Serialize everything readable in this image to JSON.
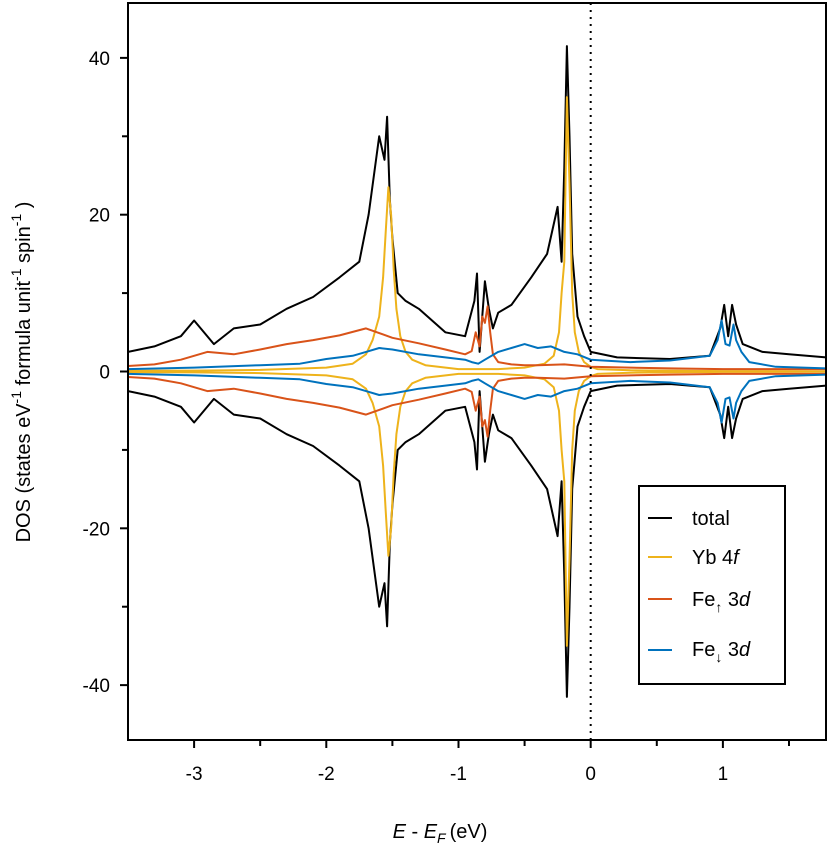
{
  "chart_data": {
    "type": "line",
    "title": "",
    "xlabel": {
      "italic_main": "E",
      "sep": " - ",
      "italic_sub_main": "E",
      "sub": "F",
      "unit": "(eV)"
    },
    "ylabel": {
      "part1": "DOS (states eV",
      "sup1": "-1",
      "part2": " formula unit",
      "sup2": "-1",
      "part3": " spin",
      "sup3": "-1",
      "part4": " )"
    },
    "xlim": [
      -3.5,
      1.78
    ],
    "ylim": [
      -47,
      47
    ],
    "xticks": [
      -3,
      -2,
      -1,
      0,
      1
    ],
    "xtick_labels": [
      "-3",
      "-2",
      "-1",
      "0",
      "1"
    ],
    "yticks": [
      40,
      20,
      0,
      -20,
      -40
    ],
    "ytick_labels": [
      "40",
      "20",
      "0",
      "-20",
      "-40"
    ],
    "fermi_level": 0,
    "legend_position": "lower-right",
    "series": [
      {
        "name": "total",
        "label_main": "total",
        "label_italic": "",
        "label_sub": "",
        "color": "#000000",
        "x": [
          -3.5,
          -3.3,
          -3.1,
          -3.0,
          -2.95,
          -2.85,
          -2.7,
          -2.5,
          -2.3,
          -2.1,
          -1.9,
          -1.75,
          -1.68,
          -1.6,
          -1.56,
          -1.54,
          -1.52,
          -1.5,
          -1.46,
          -1.4,
          -1.3,
          -1.1,
          -0.95,
          -0.88,
          -0.86,
          -0.84,
          -0.8,
          -0.77,
          -0.74,
          -0.7,
          -0.6,
          -0.45,
          -0.33,
          -0.25,
          -0.22,
          -0.2,
          -0.18,
          -0.16,
          -0.14,
          -0.1,
          -0.05,
          0.0,
          0.2,
          0.6,
          0.9,
          0.98,
          1.01,
          1.04,
          1.07,
          1.1,
          1.15,
          1.3,
          1.5,
          1.78
        ],
        "values": [
          2.5,
          3.2,
          4.5,
          6.5,
          5.5,
          3.5,
          5.5,
          6.0,
          8.0,
          9.5,
          12.0,
          14.0,
          20.0,
          30.0,
          27.0,
          32.5,
          22.0,
          17.0,
          10.0,
          9.0,
          8.0,
          5.0,
          4.5,
          9.0,
          12.5,
          2.5,
          11.5,
          8.0,
          5.5,
          7.5,
          8.5,
          12.0,
          15.0,
          21.0,
          14.0,
          26.0,
          41.5,
          30.0,
          15.0,
          7.0,
          4.5,
          2.5,
          1.8,
          1.6,
          2.0,
          5.5,
          8.5,
          4.5,
          8.5,
          6.0,
          3.5,
          2.5,
          2.2,
          1.8
        ]
      },
      {
        "name": "yb4f",
        "label_main": "Yb 4",
        "label_italic": "f",
        "label_sub": "",
        "color": "#eeb31b",
        "x": [
          -3.5,
          -3.0,
          -2.5,
          -2.0,
          -1.8,
          -1.7,
          -1.65,
          -1.6,
          -1.57,
          -1.55,
          -1.53,
          -1.51,
          -1.49,
          -1.47,
          -1.44,
          -1.4,
          -1.35,
          -1.25,
          -1.0,
          -0.7,
          -0.5,
          -0.35,
          -0.28,
          -0.24,
          -0.22,
          -0.2,
          -0.18,
          -0.16,
          -0.14,
          -0.12,
          -0.09,
          -0.05,
          0.0,
          0.05,
          0.3,
          1.0,
          1.78
        ],
        "values": [
          0.1,
          0.12,
          0.2,
          0.5,
          1.0,
          2.2,
          4.0,
          7.0,
          12.0,
          18.0,
          23.5,
          20.0,
          13.0,
          8.0,
          4.5,
          2.5,
          1.5,
          0.8,
          0.3,
          0.3,
          0.5,
          1.0,
          2.0,
          5.0,
          10.0,
          14.0,
          35.0,
          24.0,
          10.0,
          5.0,
          2.5,
          1.2,
          0.6,
          0.3,
          0.15,
          0.05,
          0.02
        ]
      },
      {
        "name": "fe_up_3d",
        "label_main": "Fe",
        "label_italic": "d",
        "label_sub": "↑",
        "color": "#d95319",
        "x": [
          -3.5,
          -3.3,
          -3.1,
          -2.9,
          -2.7,
          -2.5,
          -2.3,
          -2.1,
          -1.9,
          -1.7,
          -1.5,
          -1.3,
          -1.1,
          -0.95,
          -0.9,
          -0.87,
          -0.84,
          -0.82,
          -0.8,
          -0.78,
          -0.76,
          -0.74,
          -0.7,
          -0.6,
          -0.5,
          -0.4,
          -0.2,
          0.0,
          0.3,
          0.6,
          1.0,
          1.4,
          1.78
        ],
        "values": [
          0.7,
          0.9,
          1.5,
          2.5,
          2.2,
          2.8,
          3.5,
          4.0,
          4.6,
          5.5,
          4.3,
          3.6,
          2.8,
          2.2,
          2.6,
          5.0,
          3.2,
          7.0,
          6.2,
          8.3,
          5.0,
          2.2,
          1.2,
          0.9,
          0.8,
          0.8,
          0.9,
          0.6,
          0.5,
          0.4,
          0.3,
          0.3,
          0.3
        ]
      },
      {
        "name": "fe_down_3d",
        "label_main": "Fe",
        "label_italic": "d",
        "label_sub": "↓",
        "color": "#0072bd",
        "x": [
          -3.5,
          -3.0,
          -2.5,
          -2.2,
          -2.0,
          -1.8,
          -1.7,
          -1.6,
          -1.5,
          -1.3,
          -1.1,
          -0.95,
          -0.9,
          -0.85,
          -0.8,
          -0.7,
          -0.6,
          -0.5,
          -0.4,
          -0.3,
          -0.2,
          -0.1,
          0.0,
          0.3,
          0.6,
          0.9,
          0.96,
          0.99,
          1.02,
          1.05,
          1.08,
          1.1,
          1.14,
          1.2,
          1.4,
          1.78
        ],
        "values": [
          0.3,
          0.5,
          0.8,
          1.0,
          1.6,
          2.0,
          2.5,
          3.0,
          2.8,
          2.2,
          1.8,
          1.5,
          1.2,
          1.0,
          1.5,
          2.5,
          3.0,
          3.5,
          3.0,
          3.2,
          2.5,
          2.2,
          1.5,
          1.2,
          1.4,
          2.0,
          4.0,
          6.5,
          3.5,
          3.3,
          6.0,
          4.0,
          2.5,
          1.2,
          0.6,
          0.4
        ]
      }
    ]
  }
}
